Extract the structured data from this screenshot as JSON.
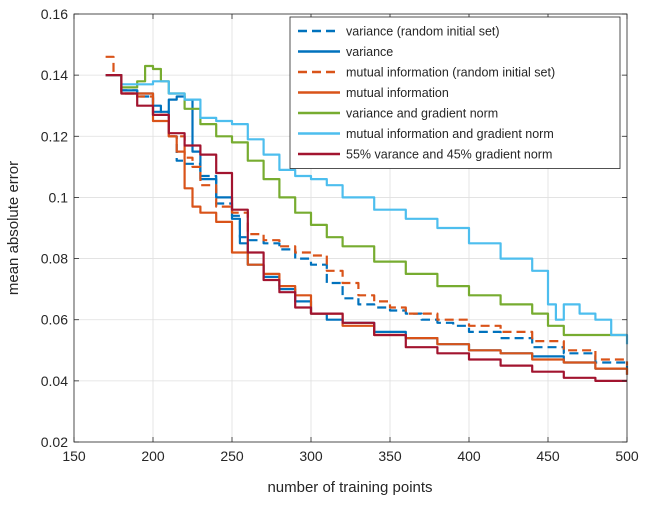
{
  "chart_data": {
    "type": "line",
    "title": "",
    "xlabel": "number of training points",
    "ylabel": "mean absolute error",
    "xlim": [
      150,
      500
    ],
    "ylim": [
      0.02,
      0.16
    ],
    "xticks": [
      150,
      200,
      250,
      300,
      350,
      400,
      450,
      500
    ],
    "yticks": [
      0.02,
      0.04,
      0.06,
      0.08,
      0.1,
      0.12,
      0.14,
      0.16
    ],
    "xtick_labels": [
      "150",
      "200",
      "250",
      "300",
      "350",
      "400",
      "450",
      "500"
    ],
    "ytick_labels": [
      "0.02",
      "0.04",
      "0.06",
      "0.08",
      "0.1",
      "0.12",
      "0.14",
      "0.16"
    ],
    "grid": true,
    "legend_position": "top-right",
    "series": [
      {
        "name": "variance (random initial set)",
        "color": "#0072BD",
        "dash": "dashed",
        "x": [
          170,
          180,
          190,
          200,
          210,
          215,
          220,
          230,
          240,
          250,
          255,
          260,
          270,
          280,
          290,
          300,
          310,
          320,
          330,
          340,
          350,
          360,
          370,
          380,
          390,
          400,
          420,
          440,
          460,
          480,
          500
        ],
        "y": [
          0.14,
          0.135,
          0.133,
          0.128,
          0.12,
          0.112,
          0.111,
          0.107,
          0.098,
          0.094,
          0.087,
          0.086,
          0.085,
          0.083,
          0.08,
          0.078,
          0.072,
          0.067,
          0.065,
          0.064,
          0.063,
          0.062,
          0.06,
          0.059,
          0.058,
          0.056,
          0.054,
          0.051,
          0.049,
          0.046,
          0.044
        ]
      },
      {
        "name": "variance",
        "color": "#0072BD",
        "dash": "solid",
        "x": [
          170,
          180,
          190,
          200,
          205,
          210,
          215,
          220,
          225,
          230,
          240,
          250,
          255,
          260,
          270,
          280,
          290,
          300,
          310,
          320,
          340,
          360,
          380,
          400,
          420,
          440,
          460,
          480,
          500
        ],
        "y": [
          0.14,
          0.135,
          0.134,
          0.13,
          0.128,
          0.132,
          0.133,
          0.132,
          0.115,
          0.106,
          0.1,
          0.093,
          0.085,
          0.078,
          0.074,
          0.07,
          0.066,
          0.062,
          0.06,
          0.059,
          0.056,
          0.054,
          0.052,
          0.05,
          0.049,
          0.048,
          0.046,
          0.044,
          0.042
        ]
      },
      {
        "name": "mutual information (random initial set)",
        "color": "#D95319",
        "dash": "dashed",
        "x": [
          170,
          175,
          180,
          190,
          200,
          210,
          220,
          225,
          230,
          240,
          250,
          260,
          270,
          280,
          290,
          300,
          310,
          320,
          330,
          340,
          350,
          360,
          380,
          400,
          420,
          440,
          460,
          480,
          500
        ],
        "y": [
          0.146,
          0.14,
          0.134,
          0.133,
          0.127,
          0.12,
          0.113,
          0.11,
          0.104,
          0.097,
          0.095,
          0.088,
          0.086,
          0.084,
          0.082,
          0.081,
          0.076,
          0.072,
          0.068,
          0.066,
          0.064,
          0.062,
          0.06,
          0.058,
          0.056,
          0.053,
          0.05,
          0.047,
          0.045
        ]
      },
      {
        "name": "mutual information",
        "color": "#D95319",
        "dash": "solid",
        "x": [
          170,
          180,
          190,
          200,
          210,
          215,
          220,
          225,
          230,
          240,
          250,
          260,
          270,
          280,
          290,
          300,
          320,
          340,
          360,
          380,
          400,
          420,
          440,
          460,
          480,
          500
        ],
        "y": [
          0.14,
          0.134,
          0.134,
          0.125,
          0.12,
          0.115,
          0.103,
          0.097,
          0.095,
          0.092,
          0.082,
          0.078,
          0.075,
          0.071,
          0.068,
          0.062,
          0.058,
          0.055,
          0.054,
          0.052,
          0.05,
          0.049,
          0.047,
          0.046,
          0.044,
          0.042
        ]
      },
      {
        "name": "variance and gradient norm",
        "color": "#77AC30",
        "dash": "solid",
        "x": [
          170,
          180,
          190,
          195,
          200,
          205,
          210,
          220,
          230,
          240,
          250,
          260,
          270,
          280,
          290,
          300,
          310,
          320,
          340,
          360,
          380,
          400,
          420,
          440,
          450,
          460,
          480,
          500
        ],
        "y": [
          0.14,
          0.136,
          0.138,
          0.143,
          0.142,
          0.138,
          0.134,
          0.129,
          0.124,
          0.12,
          0.118,
          0.112,
          0.106,
          0.1,
          0.095,
          0.091,
          0.087,
          0.084,
          0.079,
          0.075,
          0.071,
          0.068,
          0.065,
          0.062,
          0.058,
          0.055,
          0.055,
          0.055
        ]
      },
      {
        "name": "mutual information and gradient norm",
        "color": "#4DBEEE",
        "dash": "solid",
        "x": [
          170,
          180,
          190,
          200,
          210,
          220,
          230,
          240,
          250,
          260,
          270,
          280,
          290,
          300,
          310,
          320,
          340,
          360,
          380,
          400,
          420,
          440,
          450,
          455,
          460,
          470,
          480,
          490,
          500
        ],
        "y": [
          0.14,
          0.137,
          0.137,
          0.138,
          0.134,
          0.132,
          0.126,
          0.125,
          0.124,
          0.119,
          0.114,
          0.109,
          0.107,
          0.106,
          0.104,
          0.1,
          0.096,
          0.093,
          0.09,
          0.085,
          0.08,
          0.076,
          0.065,
          0.06,
          0.065,
          0.062,
          0.06,
          0.055,
          0.052
        ]
      },
      {
        "name": "55% varance and 45% gradient norm",
        "color": "#A2142F",
        "dash": "solid",
        "x": [
          170,
          180,
          190,
          200,
          210,
          220,
          230,
          240,
          250,
          260,
          270,
          280,
          290,
          300,
          320,
          340,
          360,
          380,
          400,
          420,
          440,
          460,
          480,
          500
        ],
        "y": [
          0.14,
          0.134,
          0.13,
          0.127,
          0.121,
          0.117,
          0.114,
          0.108,
          0.096,
          0.082,
          0.073,
          0.069,
          0.064,
          0.062,
          0.059,
          0.055,
          0.051,
          0.049,
          0.047,
          0.045,
          0.043,
          0.041,
          0.04,
          0.04
        ]
      }
    ]
  }
}
